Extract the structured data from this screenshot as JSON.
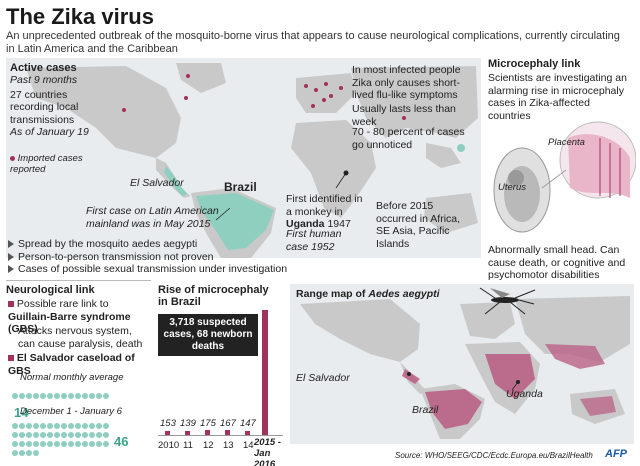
{
  "header": {
    "title": "The Zika virus",
    "subtitle": "An unprecedented outbreak of the  mosquito-borne virus that appears to cause neurological complications, currently circulating in Latin America and the Caribbean"
  },
  "active_cases": {
    "heading": "Active cases",
    "period": "Past 9 months",
    "countries": "27 countries recording local transmissions",
    "as_of": "As of January 19",
    "legend": "Imported cases reported"
  },
  "map_labels": {
    "el_salvador": "El Salvador",
    "brazil": "Brazil",
    "first_case": "First case on Latin American mainland was in May 2015",
    "infected_note": "In most infected people Zika only causes short-lived flu-like symptoms",
    "duration": "Usually lasts less than week",
    "unnoticed": "70 - 80 percent of cases go unnoticed",
    "first_identified": "First identified in a monkey in",
    "uganda_year_country": "Uganda",
    "uganda_year": "1947",
    "first_human": "First human case 1952",
    "before_2015": "Before 2015 occurred in Africa, SE Asia, Pacific Islands"
  },
  "transmission": [
    "Spread by the mosquito aedes aegypti",
    "Person-to-person transmission not proven",
    "Cases of possible sexual transmission under investigation"
  ],
  "microcephaly_link": {
    "heading": "Microcephaly link",
    "text": "Scientists are investigating an alarming rise in microcephaly cases in Zika-affected countries",
    "placenta": "Placenta",
    "uterus": "Uterus",
    "effects": "Abnormally small head. Can cause death, or cognitive and psychomotor disabilities"
  },
  "neurological": {
    "heading": "Neurological link",
    "item1": "Possible rare link to",
    "item1b": "Guillain-Barre syndrome (GBS)",
    "item2": "Attacks nervous system, can cause paralysis, death",
    "gbs_heading": "El Salvador caseload of GBS",
    "normal_label": "Normal monthly average",
    "normal_value": "14",
    "period_label": "December 1 - January 6",
    "period_value": "46"
  },
  "chart_data": {
    "type": "bar",
    "title": "Rise of microcephaly in Brazil",
    "categories": [
      "2010",
      "11",
      "12",
      "13",
      "14",
      "2015 - Jan 2016"
    ],
    "values": [
      153,
      139,
      175,
      167,
      147,
      3718
    ],
    "annotation": "3,718 suspected cases, 68 newborn deaths",
    "color": "#a3315d"
  },
  "range_map": {
    "title": "Range map of",
    "species": "Aedes aegypti",
    "el_salvador": "El Salvador",
    "brazil": "Brazil",
    "uganda": "Uganda"
  },
  "footer": {
    "source": "Source: WHO/SEEG/CDC/Ecdc.Europa.eu/BrazilHealth",
    "logo": "AFP"
  }
}
